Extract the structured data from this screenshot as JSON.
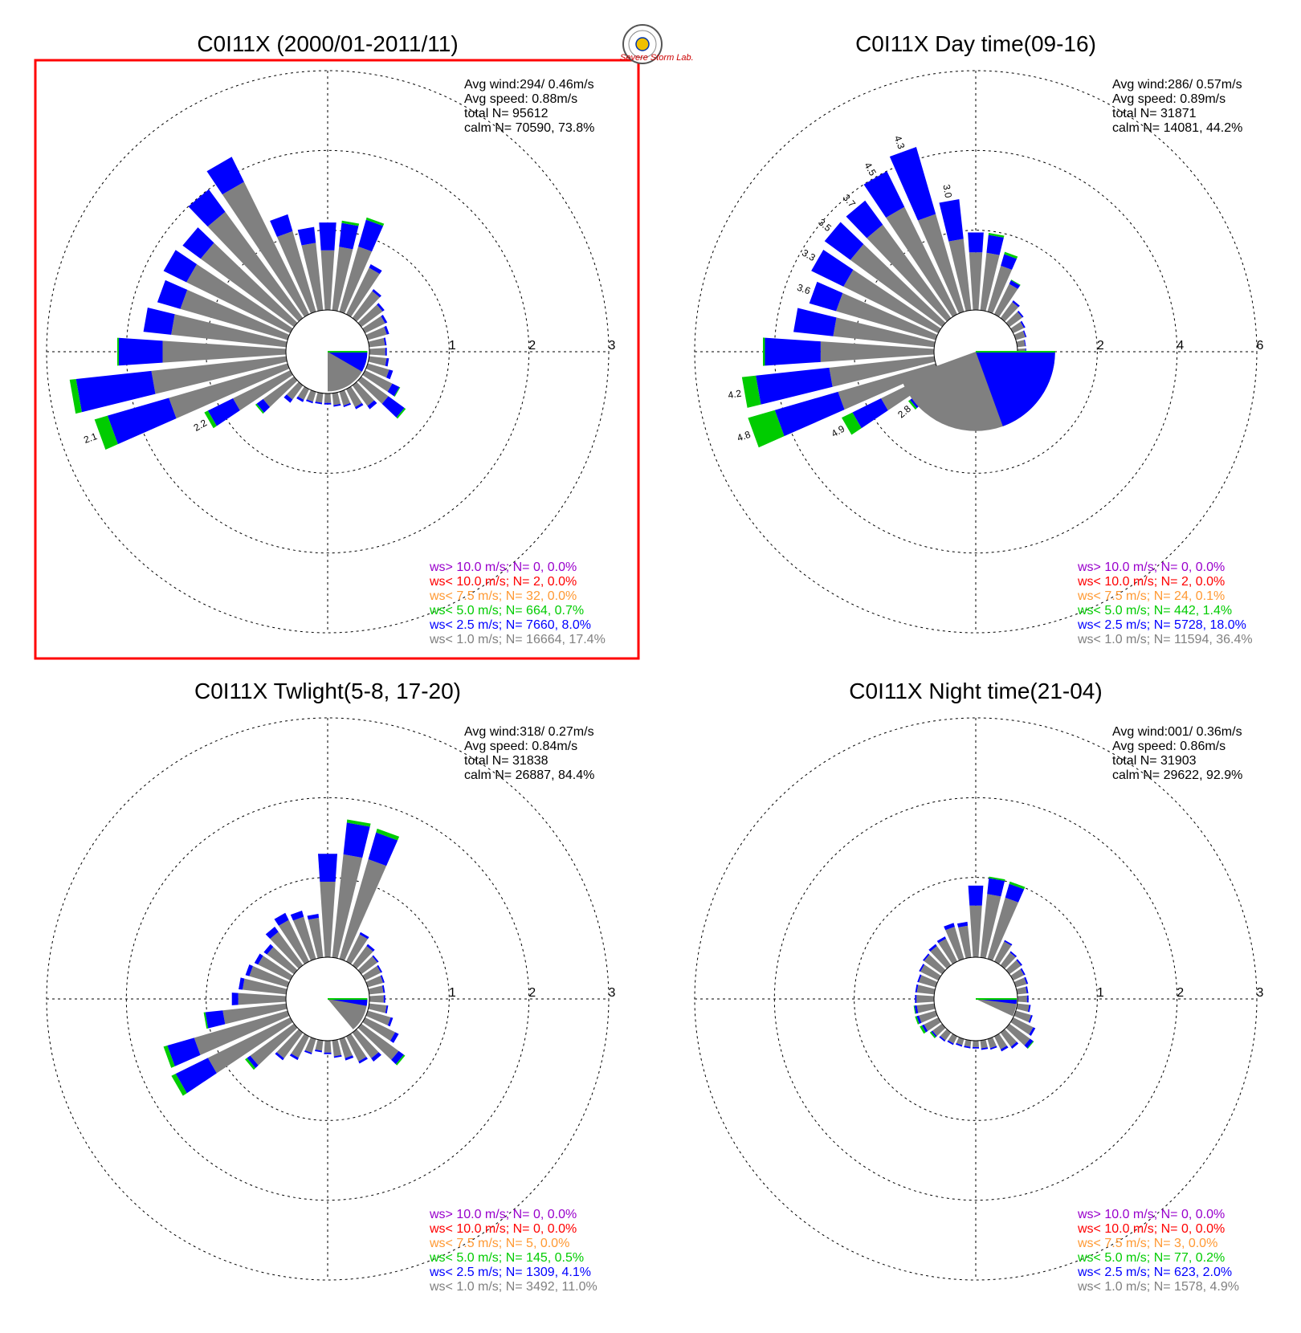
{
  "logo": {
    "text": "Severe Storm Lab.",
    "name": "severe-storm-lab-logo"
  },
  "colors": {
    "c1": "#808080",
    "c25": "#0000ff",
    "c5": "#00cc00",
    "c75": "#ff9933",
    "c10": "#ff0000",
    "cgt10": "#9900cc",
    "highlight": "#ff0000"
  },
  "chart_data": [
    {
      "type": "windrose",
      "title": "C0I11X (2000/01-2011/11)",
      "highlighted": true,
      "rmax": 3,
      "ring_labels": [
        "1",
        "2",
        "3"
      ],
      "stats": [
        "Avg wind:294/ 0.46m/s",
        "Avg speed: 0.88m/s",
        "total N=       95612",
        "calm N=  70590,  73.8%"
      ],
      "legend": [
        "ws> 10.0 m/s; N=     0,  0.0%",
        "ws< 10.0 m/s; N=     2,  0.0%",
        "ws<  7.5 m/s; N=    32,  0.0%",
        "ws<  5.0 m/s; N=   664,  0.7%",
        "ws<  2.5 m/s; N=  7660,  8.0%",
        "ws<  1.0 m/s; N= 16664, 17.4%"
      ],
      "calm_wedge": {
        "start_deg": 90,
        "end_deg": 180,
        "r": 0.95,
        "blue_end_deg": 120
      },
      "directions": [
        0,
        10,
        20,
        30,
        40,
        50,
        60,
        70,
        80,
        90,
        100,
        110,
        120,
        130,
        140,
        150,
        160,
        170,
        180,
        190,
        200,
        210,
        220,
        230,
        240,
        250,
        260,
        270,
        280,
        290,
        300,
        310,
        320,
        330,
        340,
        350
      ],
      "grey": [
        0.75,
        0.8,
        0.85,
        0.65,
        0.42,
        0.33,
        0.28,
        0.25,
        0.2,
        0.2,
        0.22,
        0.28,
        0.38,
        0.42,
        0.32,
        0.25,
        0.18,
        0.15,
        0.12,
        0.12,
        0.13,
        0.15,
        0.22,
        0.48,
        0.8,
        1.55,
        1.7,
        1.55,
        1.45,
        1.4,
        1.45,
        1.45,
        1.65,
        1.85,
        1.05,
        0.85
      ],
      "blue": [
        0.35,
        0.3,
        0.35,
        0.05,
        0.03,
        0.03,
        0.03,
        0.03,
        0.02,
        0.02,
        0.03,
        0.05,
        0.1,
        0.25,
        0.05,
        0.03,
        0.02,
        0.02,
        0.02,
        0.02,
        0.02,
        0.03,
        0.05,
        0.1,
        0.35,
        0.8,
        0.95,
        0.55,
        0.35,
        0.3,
        0.32,
        0.28,
        0.35,
        0.35,
        0.22,
        0.2
      ],
      "green": [
        0,
        0.03,
        0.03,
        0,
        0,
        0,
        0,
        0,
        0,
        0,
        0,
        0,
        0.01,
        0.02,
        0,
        0,
        0,
        0,
        0,
        0,
        0,
        0,
        0,
        0.02,
        0.05,
        0.17,
        0.08,
        0.02,
        0,
        0,
        0,
        0,
        0,
        0,
        0,
        0
      ],
      "bar_labels": [
        {
          "dir": 240,
          "text": "2.2"
        },
        {
          "dir": 250,
          "text": "2.1"
        }
      ]
    },
    {
      "type": "windrose",
      "title": "C0I11X Day time(09-16)",
      "highlighted": false,
      "rmax": 6,
      "ring_labels": [
        "2",
        "4",
        "6"
      ],
      "stats": [
        "Avg wind:286/ 0.57m/s",
        "Avg speed: 0.89m/s",
        "total N=       31871",
        "calm N=  14081,  44.2%"
      ],
      "legend": [
        "ws> 10.0 m/s; N=     0,  0.0%",
        "ws< 10.0 m/s; N=     2,  0.0%",
        "ws<  7.5 m/s; N=    24,  0.1%",
        "ws<  5.0 m/s; N=   442,  1.4%",
        "ws<  2.5 m/s; N=  5728, 18.0%",
        "ws<  1.0 m/s; N= 11594, 36.4%"
      ],
      "calm_wedge": {
        "start_deg": 90,
        "end_deg": 250,
        "r": 1.9,
        "blue_end_deg": 160
      },
      "directions": [
        0,
        10,
        20,
        30,
        40,
        50,
        60,
        70,
        80,
        90,
        100,
        110,
        120,
        130,
        140,
        150,
        160,
        170,
        180,
        190,
        200,
        210,
        220,
        230,
        240,
        250,
        260,
        270,
        280,
        290,
        300,
        310,
        320,
        330,
        340,
        350
      ],
      "grey": [
        1.45,
        1.45,
        1.2,
        0.85,
        0.5,
        0.4,
        0.3,
        0.25,
        0.2,
        0.2,
        0.22,
        0.28,
        0.35,
        0.4,
        0.35,
        0.35,
        0.2,
        0.2,
        0.18,
        0.18,
        0.22,
        0.3,
        0.5,
        0.8,
        1.6,
        2.55,
        2.65,
        2.85,
        2.55,
        2.6,
        2.65,
        2.85,
        2.9,
        3.0,
        2.55,
        1.8
      ],
      "blue": [
        0.5,
        0.45,
        0.3,
        0.1,
        0.05,
        0.04,
        0.04,
        0.03,
        0.02,
        0.02,
        0.03,
        0.05,
        0.1,
        0.3,
        0.08,
        0.06,
        0.04,
        0.03,
        0.03,
        0.03,
        0.03,
        0.05,
        0.1,
        0.2,
        0.8,
        1.65,
        1.85,
        1.4,
        1.0,
        0.7,
        0.9,
        0.8,
        0.75,
        1.0,
        1.75,
        1.0
      ],
      "green": [
        0,
        0.05,
        0.06,
        0.02,
        0,
        0,
        0,
        0,
        0,
        0,
        0,
        0,
        0.02,
        0.05,
        0,
        0,
        0,
        0,
        0,
        0,
        0,
        0,
        0,
        0.05,
        0.3,
        0.7,
        0.35,
        0.05,
        0,
        0,
        0,
        0,
        0,
        0,
        0,
        0
      ],
      "bar_labels": [
        {
          "dir": 20,
          "text": ""
        },
        {
          "dir": 230,
          "text": "2.8"
        },
        {
          "dir": 240,
          "text": "4.9"
        },
        {
          "dir": 250,
          "text": "4.8"
        },
        {
          "dir": 260,
          "text": "4.2"
        },
        {
          "dir": 290,
          "text": "3.6"
        },
        {
          "dir": 300,
          "text": "3.3"
        },
        {
          "dir": 310,
          "text": "3.5"
        },
        {
          "dir": 320,
          "text": "3.7"
        },
        {
          "dir": 330,
          "text": "4.5"
        },
        {
          "dir": 340,
          "text": "4.3"
        },
        {
          "dir": 350,
          "text": "3.0"
        }
      ]
    },
    {
      "type": "windrose",
      "title": "C0I11X Twlight(5-8, 17-20)",
      "highlighted": false,
      "rmax": 3,
      "ring_labels": [
        "1",
        "2",
        "3"
      ],
      "stats": [
        "Avg wind:318/ 0.27m/s",
        "Avg speed: 0.84m/s",
        "total N=       31838",
        "calm N=  26887,  84.4%"
      ],
      "legend": [
        "ws> 10.0 m/s; N=     0,  0.0%",
        "ws< 10.0 m/s; N=     0,  0.0%",
        "ws<  7.5 m/s; N=     5,  0.0%",
        "ws<  5.0 m/s; N=   145,  0.5%",
        "ws<  2.5 m/s; N=  1309,  4.1%",
        "ws<  1.0 m/s; N=  3492, 11.0%"
      ],
      "calm_wedge": {
        "start_deg": 90,
        "end_deg": 140,
        "r": 0.95,
        "blue_end_deg": 100
      },
      "directions": [
        0,
        10,
        20,
        30,
        40,
        50,
        60,
        70,
        80,
        90,
        100,
        110,
        120,
        130,
        140,
        150,
        160,
        170,
        180,
        190,
        200,
        210,
        220,
        230,
        240,
        250,
        260,
        270,
        280,
        290,
        300,
        310,
        320,
        330,
        340,
        350
      ],
      "grey": [
        0.95,
        1.3,
        1.3,
        0.38,
        0.3,
        0.25,
        0.22,
        0.2,
        0.18,
        0.18,
        0.22,
        0.3,
        0.42,
        0.58,
        0.4,
        0.35,
        0.25,
        0.2,
        0.15,
        0.13,
        0.18,
        0.3,
        0.4,
        0.68,
        1.15,
        1.22,
        0.8,
        0.6,
        0.55,
        0.5,
        0.45,
        0.42,
        0.52,
        0.58,
        0.55,
        0.5
      ],
      "blue": [
        0.35,
        0.4,
        0.35,
        0.03,
        0.03,
        0.02,
        0.02,
        0.02,
        0.02,
        0.02,
        0.02,
        0.03,
        0.05,
        0.08,
        0.05,
        0.03,
        0.03,
        0.02,
        0.02,
        0.02,
        0.02,
        0.03,
        0.03,
        0.05,
        0.45,
        0.35,
        0.22,
        0.08,
        0.05,
        0.05,
        0.05,
        0.05,
        0.08,
        0.1,
        0.08,
        0.05
      ],
      "green": [
        0,
        0.04,
        0.05,
        0,
        0,
        0,
        0,
        0,
        0,
        0,
        0,
        0,
        0,
        0.02,
        0,
        0,
        0,
        0,
        0,
        0,
        0,
        0,
        0,
        0.03,
        0.06,
        0.05,
        0.02,
        0,
        0,
        0,
        0,
        0,
        0,
        0,
        0,
        0
      ],
      "bar_labels": []
    },
    {
      "type": "windrose",
      "title": "C0I11X Night time(21-04)",
      "highlighted": false,
      "rmax": 3,
      "ring_labels": [
        "1",
        "2",
        "3"
      ],
      "stats": [
        "Avg wind:001/ 0.36m/s",
        "Avg speed: 0.86m/s",
        "total N=       31903",
        "calm N=  29622,  92.9%"
      ],
      "legend": [
        "ws> 10.0 m/s; N=     0,  0.0%",
        "ws< 10.0 m/s; N=     0,  0.0%",
        "ws<  7.5 m/s; N=     3,  0.0%",
        "ws<  5.0 m/s; N=    77,  0.2%",
        "ws<  2.5 m/s; N=   623,  2.0%",
        "ws<  1.0 m/s; N=  1578,  4.9%"
      ],
      "calm_wedge": {
        "start_deg": 90,
        "end_deg": 115,
        "r": 0.98,
        "blue_end_deg": 97
      },
      "directions": [
        0,
        10,
        20,
        30,
        40,
        50,
        60,
        70,
        80,
        90,
        100,
        110,
        120,
        130,
        140,
        150,
        160,
        170,
        180,
        190,
        200,
        210,
        220,
        230,
        240,
        250,
        260,
        270,
        280,
        290,
        300,
        310,
        320,
        330,
        340,
        350
      ],
      "grey": [
        0.65,
        0.8,
        0.8,
        0.28,
        0.2,
        0.18,
        0.15,
        0.14,
        0.12,
        0.12,
        0.15,
        0.2,
        0.28,
        0.32,
        0.22,
        0.18,
        0.12,
        0.1,
        0.08,
        0.08,
        0.08,
        0.1,
        0.12,
        0.15,
        0.2,
        0.22,
        0.22,
        0.22,
        0.22,
        0.22,
        0.25,
        0.28,
        0.3,
        0.32,
        0.42,
        0.4
      ],
      "blue": [
        0.25,
        0.2,
        0.18,
        0.02,
        0.02,
        0.02,
        0.02,
        0.02,
        0.02,
        0.02,
        0.02,
        0.02,
        0.03,
        0.05,
        0.03,
        0.03,
        0.02,
        0.02,
        0.02,
        0.02,
        0.02,
        0.02,
        0.02,
        0.02,
        0.03,
        0.03,
        0.03,
        0.02,
        0.02,
        0.02,
        0.02,
        0.02,
        0.03,
        0.03,
        0.05,
        0.05
      ],
      "green": [
        0,
        0.02,
        0.03,
        0,
        0,
        0,
        0,
        0,
        0,
        0,
        0,
        0,
        0,
        0.01,
        0,
        0,
        0,
        0,
        0,
        0,
        0,
        0,
        0,
        0.02,
        0.03,
        0.02,
        0.01,
        0,
        0,
        0,
        0,
        0,
        0,
        0,
        0,
        0
      ],
      "bar_labels": []
    }
  ]
}
